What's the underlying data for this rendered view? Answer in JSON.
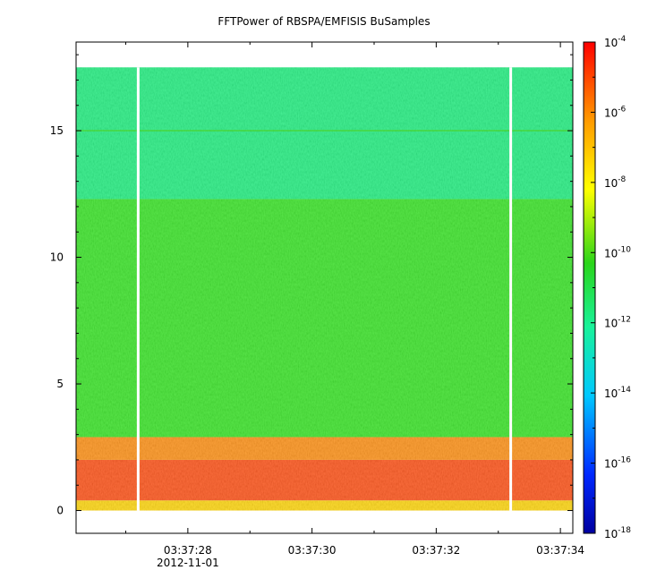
{
  "chart_data": {
    "type": "heatmap",
    "title": "FFTPower of RBSPA/EMFISIS  BuSamples",
    "xlabel": "",
    "ylabel": "",
    "x_ticks": [
      {
        "label": "03:37:28",
        "sublabel": "2012-11-01"
      },
      {
        "label": "03:37:30",
        "sublabel": ""
      },
      {
        "label": "03:37:32",
        "sublabel": ""
      },
      {
        "label": "03:37:34",
        "sublabel": ""
      }
    ],
    "x_range_seconds": [
      26.2,
      34.2
    ],
    "y_ticks": [
      "0",
      "5",
      "10",
      "15"
    ],
    "ylim": [
      -0.9,
      18.5
    ],
    "data_y_range": [
      0,
      17.5
    ],
    "colorbar": {
      "scale": "log",
      "range_exponents": [
        -18,
        -4
      ],
      "tick_labels": [
        {
          "base": "10",
          "exp": "-4"
        },
        {
          "base": "10",
          "exp": "-6"
        },
        {
          "base": "10",
          "exp": "-8"
        },
        {
          "base": "10",
          "exp": "-10"
        },
        {
          "base": "10",
          "exp": "-12"
        },
        {
          "base": "10",
          "exp": "-14"
        },
        {
          "base": "10",
          "exp": "-16"
        },
        {
          "base": "10",
          "exp": "-18"
        }
      ]
    },
    "bands": [
      {
        "y_from": 0.0,
        "y_to": 0.4,
        "color": "#ffd400"
      },
      {
        "y_from": 0.4,
        "y_to": 2.0,
        "color": "#ff4a0c"
      },
      {
        "y_from": 2.0,
        "y_to": 2.9,
        "color": "#ff8c0a"
      },
      {
        "y_from": 2.9,
        "y_to": 12.3,
        "color": "#2fe31c"
      },
      {
        "y_from": 12.3,
        "y_to": 17.5,
        "color": "#17ee7a"
      }
    ],
    "gaps_at_seconds": [
      27.2,
      33.2
    ],
    "grid": false
  }
}
